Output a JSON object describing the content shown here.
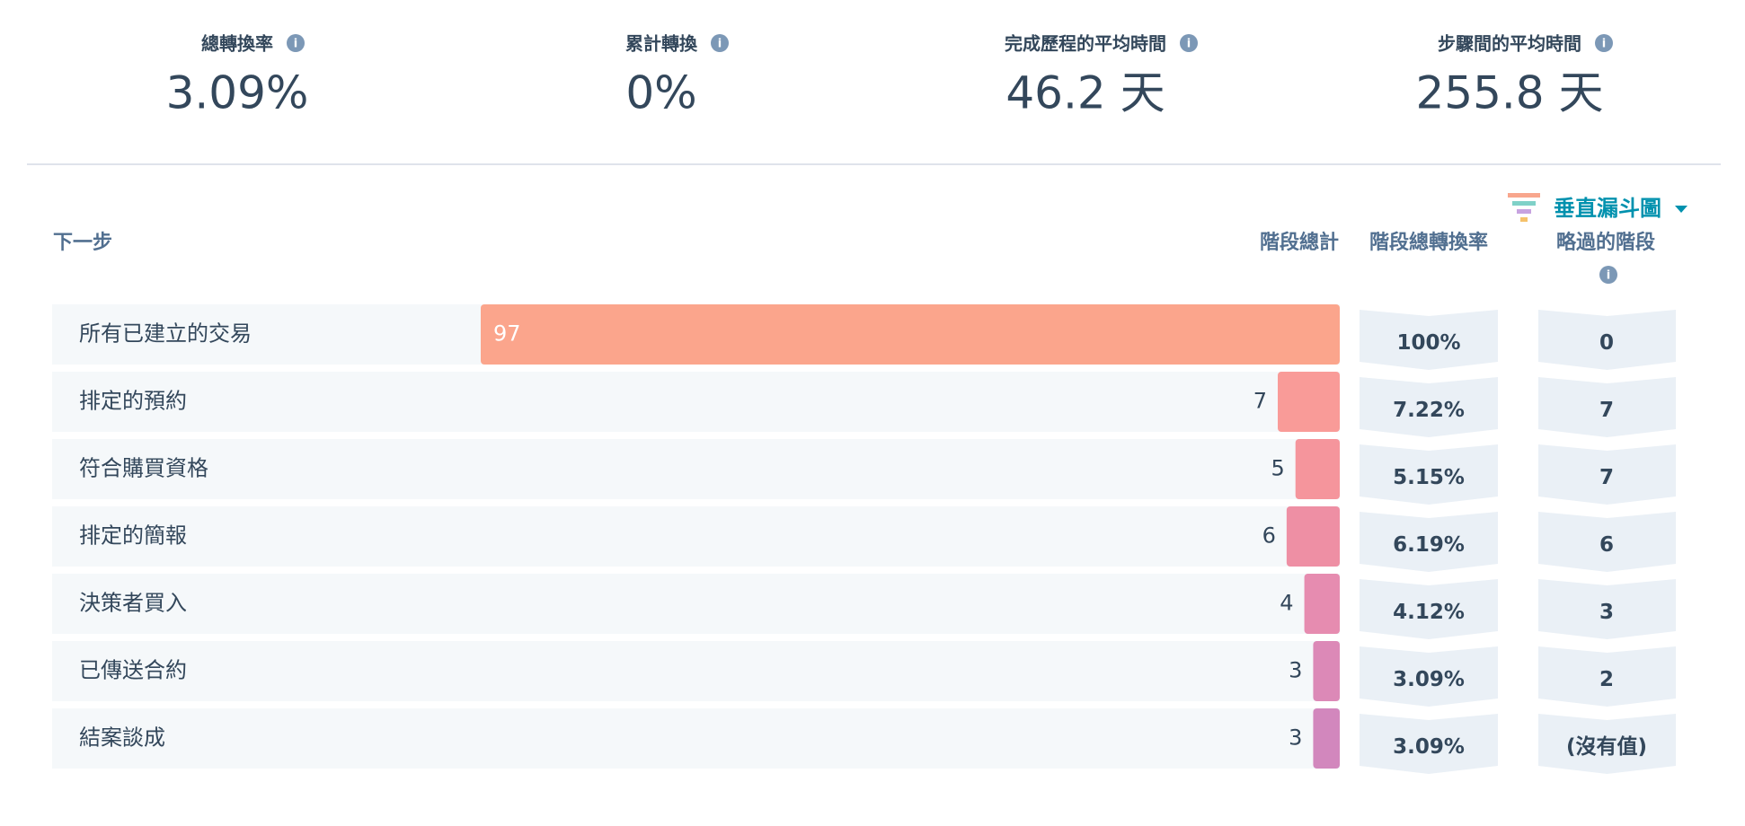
{
  "metrics": [
    {
      "label": "總轉換率",
      "value": "3.09%"
    },
    {
      "label": "累計轉換",
      "value": "0%"
    },
    {
      "label": "完成歷程的平均時間",
      "value": "46.2 天"
    },
    {
      "label": "步驟間的平均時間",
      "value": "255.8 天"
    }
  ],
  "view_selector": "垂直漏斗圖",
  "chart_data": {
    "type": "bar",
    "headers": {
      "stage": "下一步",
      "total": "階段總計",
      "conversion": "階段總轉換率",
      "skipped": "略過的階段"
    },
    "categories": [
      "所有已建立的交易",
      "排定的預約",
      "符合購買資格",
      "排定的簡報",
      "決策者買入",
      "已傳送合約",
      "結案談成"
    ],
    "values": [
      97,
      7,
      5,
      6,
      4,
      3,
      3
    ],
    "colors": [
      "#fba58c",
      "#f99b98",
      "#f5959c",
      "#ee8fa4",
      "#e68cb0",
      "#dc89b7",
      "#d287bd"
    ],
    "conversion_rates": [
      "100%",
      "7.22%",
      "5.15%",
      "6.19%",
      "4.12%",
      "3.09%",
      "3.09%"
    ],
    "skipped_stages": [
      "0",
      "7",
      "7",
      "6",
      "3",
      "2",
      "(沒有值)"
    ]
  }
}
